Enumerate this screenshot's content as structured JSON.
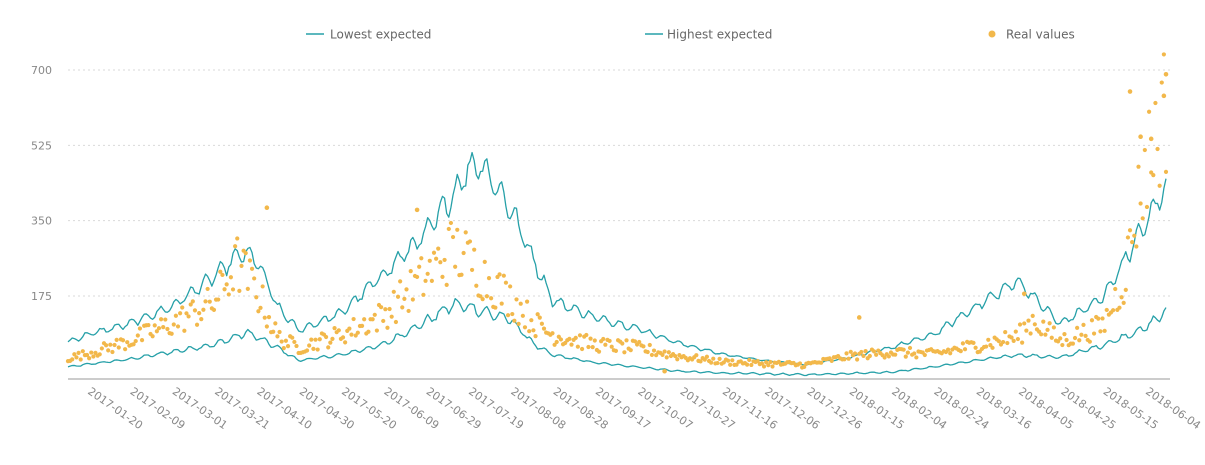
{
  "chart_data": {
    "type": "line",
    "title": "",
    "xlabel": "",
    "ylabel": "",
    "ylim": [
      -18,
      700
    ],
    "y_ticks": [
      175,
      350,
      525,
      700
    ],
    "y_tick_labels": [
      "175",
      "350",
      "525",
      "700"
    ],
    "x_range": [
      "2017-01-11",
      "2018-06-14"
    ],
    "x_ticks": [
      "2017-01-20",
      "2017-02-09",
      "2017-03-01",
      "2017-03-21",
      "2017-04-10",
      "2017-04-30",
      "2017-05-20",
      "2017-06-09",
      "2017-06-29",
      "2017-07-19",
      "2017-08-08",
      "2017-08-28",
      "2017-09-17",
      "2017-10-07",
      "2017-10-27",
      "2017-11-16",
      "2017-12-06",
      "2017-12-26",
      "2018-01-15",
      "2018-02-04",
      "2018-02-24",
      "2018-03-16",
      "2018-04-05",
      "2018-04-25",
      "2018-05-15",
      "2018-06-04"
    ],
    "grid": "horizontal dotted",
    "legend_position": "top",
    "colors": {
      "lowest": "#26a0a8",
      "highest": "#26a0a8",
      "real": "#f2b84b",
      "axis": "#999999"
    },
    "legend": [
      {
        "label": "Lowest expected",
        "marker": "line",
        "color": "#26a0a8"
      },
      {
        "label": "Highest expected",
        "marker": "line",
        "color": "#26a0a8"
      },
      {
        "label": "Real values",
        "marker": "dot",
        "color": "#f2b84b"
      }
    ],
    "series": [
      {
        "name": "Lowest expected",
        "style": "line",
        "points": [
          [
            "2017-01-11",
            10
          ],
          [
            "2017-01-20",
            16
          ],
          [
            "2017-02-09",
            28
          ],
          [
            "2017-03-01",
            45
          ],
          [
            "2017-03-21",
            62
          ],
          [
            "2017-04-06",
            90
          ],
          [
            "2017-04-20",
            55
          ],
          [
            "2017-04-30",
            25
          ],
          [
            "2017-05-20",
            38
          ],
          [
            "2017-06-09",
            62
          ],
          [
            "2017-06-29",
            115
          ],
          [
            "2017-07-12",
            155
          ],
          [
            "2017-07-19",
            150
          ],
          [
            "2017-08-08",
            120
          ],
          [
            "2017-08-20",
            60
          ],
          [
            "2017-08-28",
            38
          ],
          [
            "2017-09-17",
            20
          ],
          [
            "2017-10-07",
            10
          ],
          [
            "2017-10-27",
            0
          ],
          [
            "2017-11-16",
            -4
          ],
          [
            "2017-12-06",
            -6
          ],
          [
            "2017-12-26",
            -8
          ],
          [
            "2018-01-15",
            -5
          ],
          [
            "2018-02-04",
            -2
          ],
          [
            "2018-02-24",
            10
          ],
          [
            "2018-03-16",
            25
          ],
          [
            "2018-04-05",
            38
          ],
          [
            "2018-04-25",
            32
          ],
          [
            "2018-05-15",
            60
          ],
          [
            "2018-06-04",
            100
          ],
          [
            "2018-06-14",
            140
          ]
        ]
      },
      {
        "name": "Highest expected",
        "style": "line",
        "points": [
          [
            "2017-01-11",
            68
          ],
          [
            "2017-01-20",
            85
          ],
          [
            "2017-02-09",
            110
          ],
          [
            "2017-03-01",
            150
          ],
          [
            "2017-03-21",
            220
          ],
          [
            "2017-04-03",
            275
          ],
          [
            "2017-04-10",
            260
          ],
          [
            "2017-04-20",
            150
          ],
          [
            "2017-04-30",
            95
          ],
          [
            "2017-05-20",
            135
          ],
          [
            "2017-06-09",
            225
          ],
          [
            "2017-06-29",
            320
          ],
          [
            "2017-07-12",
            410
          ],
          [
            "2017-07-19",
            470
          ],
          [
            "2017-07-25",
            485
          ],
          [
            "2017-08-08",
            380
          ],
          [
            "2017-08-20",
            250
          ],
          [
            "2017-08-28",
            165
          ],
          [
            "2017-09-17",
            125
          ],
          [
            "2017-10-07",
            100
          ],
          [
            "2017-10-27",
            65
          ],
          [
            "2017-11-16",
            40
          ],
          [
            "2017-12-06",
            25
          ],
          [
            "2017-12-26",
            15
          ],
          [
            "2018-01-15",
            32
          ],
          [
            "2018-02-04",
            55
          ],
          [
            "2018-02-24",
            85
          ],
          [
            "2018-03-16",
            150
          ],
          [
            "2018-04-05",
            210
          ],
          [
            "2018-04-12",
            175
          ],
          [
            "2018-04-25",
            110
          ],
          [
            "2018-05-15",
            170
          ],
          [
            "2018-06-04",
            340
          ],
          [
            "2018-06-14",
            430
          ]
        ]
      },
      {
        "name": "Real values",
        "style": "dots",
        "points": [
          [
            "2017-01-11",
            30
          ],
          [
            "2017-01-20",
            40
          ],
          [
            "2017-02-09",
            70
          ],
          [
            "2017-03-01",
            110
          ],
          [
            "2017-03-21",
            160
          ],
          [
            "2017-04-01",
            250
          ],
          [
            "2017-04-10",
            190
          ],
          [
            "2017-04-20",
            80
          ],
          [
            "2017-04-30",
            55
          ],
          [
            "2017-05-20",
            85
          ],
          [
            "2017-06-09",
            130
          ],
          [
            "2017-06-29",
            220
          ],
          [
            "2017-07-12",
            285
          ],
          [
            "2017-07-19",
            260
          ],
          [
            "2017-07-28",
            215
          ],
          [
            "2017-08-08",
            170
          ],
          [
            "2017-08-20",
            110
          ],
          [
            "2017-08-28",
            85
          ],
          [
            "2017-09-17",
            62
          ],
          [
            "2017-10-07",
            55
          ],
          [
            "2017-10-27",
            35
          ],
          [
            "2017-11-16",
            22
          ],
          [
            "2017-12-06",
            18
          ],
          [
            "2017-12-26",
            15
          ],
          [
            "2018-01-15",
            35
          ],
          [
            "2018-02-04",
            45
          ],
          [
            "2018-02-24",
            40
          ],
          [
            "2018-03-16",
            60
          ],
          [
            "2018-04-05",
            80
          ],
          [
            "2018-04-12",
            120
          ],
          [
            "2018-04-25",
            70
          ],
          [
            "2018-05-15",
            105
          ],
          [
            "2018-05-25",
            210
          ],
          [
            "2018-06-04",
            470
          ],
          [
            "2018-06-14",
            620
          ]
        ],
        "notable_points": [
          [
            "2017-04-15",
            380
          ],
          [
            "2017-06-25",
            375
          ],
          [
            "2018-01-20",
            125
          ],
          [
            "2017-10-20",
            0
          ],
          [
            "2018-04-08",
            180
          ],
          [
            "2018-05-28",
            650
          ],
          [
            "2018-06-14",
            690
          ],
          [
            "2018-06-13",
            640
          ],
          [
            "2018-06-02",
            545
          ],
          [
            "2018-06-07",
            540
          ]
        ]
      }
    ]
  }
}
